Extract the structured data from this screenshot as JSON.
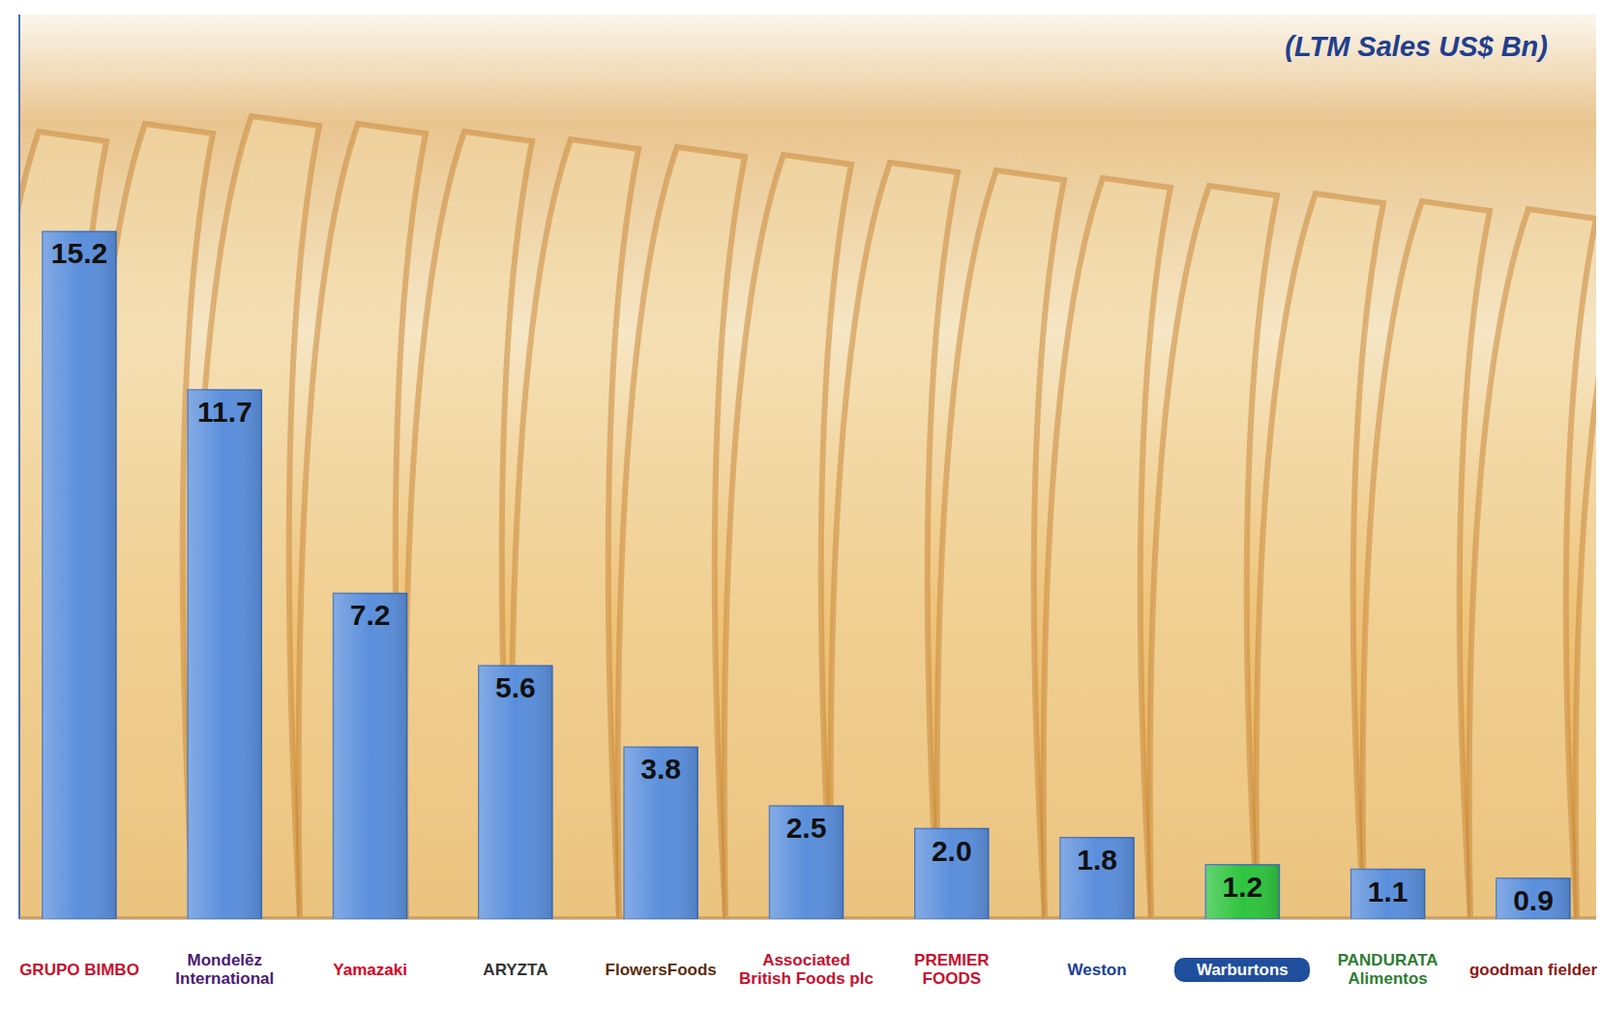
{
  "chart_data": {
    "type": "bar",
    "title": "(LTM Sales US$ Bn)",
    "categories": [
      "GRUPO BIMBO",
      "Mondelēz International",
      "Yamazaki",
      "ARYZTA",
      "FlowersFoods",
      "Associated British Foods plc",
      "PREMIER FOODS",
      "Weston",
      "Warburtons",
      "PANDURATA Alimentos",
      "goodman fielder"
    ],
    "values": [
      15.2,
      11.7,
      7.2,
      5.6,
      3.8,
      2.5,
      2.0,
      1.8,
      1.2,
      1.1,
      0.9
    ],
    "value_labels": [
      "15.2",
      "11.7",
      "7.2",
      "5.6",
      "3.8",
      "2.5",
      "2.0",
      "1.8",
      "1.2",
      "1.1",
      "0.9"
    ],
    "colors": [
      "#5b8fdc",
      "#5b8fdc",
      "#5b8fdc",
      "#5b8fdc",
      "#5b8fdc",
      "#5b8fdc",
      "#5b8fdc",
      "#5b8fdc",
      "#2fc43f",
      "#5b8fdc",
      "#5b8fdc"
    ],
    "ylim": [
      0,
      20
    ],
    "data_labels": true,
    "tick_labels": false,
    "grid": false
  }
}
